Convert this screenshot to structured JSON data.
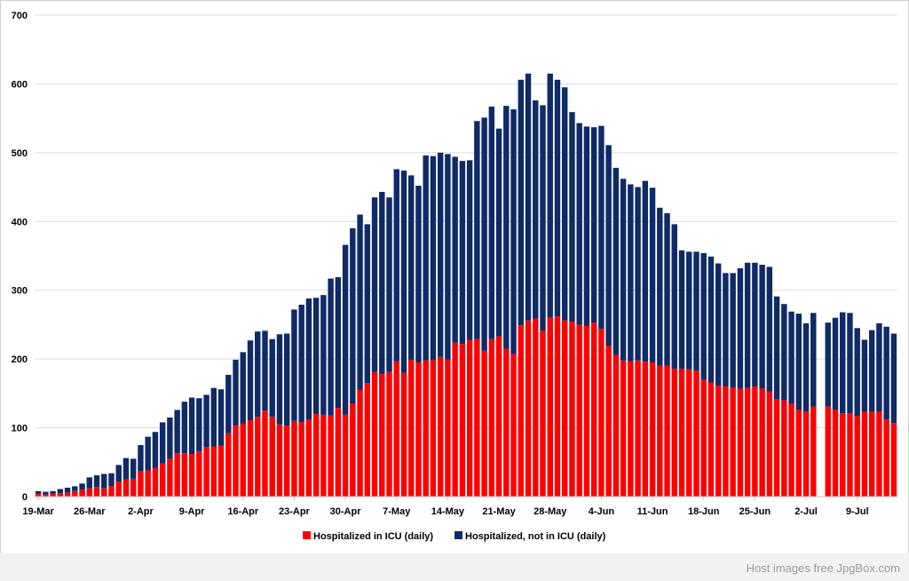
{
  "chart_data": {
    "type": "bar",
    "stacked": true,
    "title": "",
    "xlabel": "",
    "ylabel": "",
    "ylim": [
      0,
      700
    ],
    "yticks": [
      0,
      100,
      200,
      300,
      400,
      500,
      600,
      700
    ],
    "grid": true,
    "legend_position": "bottom",
    "x_start_date": "2020-03-19",
    "x_tick_labels": [
      "19-Mar",
      "26-Mar",
      "2-Apr",
      "9-Apr",
      "16-Apr",
      "23-Apr",
      "30-Apr",
      "7-May",
      "14-May",
      "21-May",
      "28-May",
      "4-Jun",
      "11-Jun",
      "18-Jun",
      "25-Jun",
      "2-Jul",
      "9-Jul"
    ],
    "series": [
      {
        "name": "Hospitalized in ICU (daily)",
        "color": "#ff0000",
        "values": [
          4,
          3,
          4,
          5,
          6,
          8,
          10,
          12,
          14,
          12,
          15,
          22,
          25,
          26,
          37,
          38,
          42,
          48,
          55,
          63,
          63,
          62,
          66,
          72,
          73,
          74,
          92,
          103,
          106,
          111,
          116,
          125,
          116,
          105,
          103,
          110,
          108,
          112,
          120,
          119,
          118,
          129,
          119,
          135,
          155,
          165,
          181,
          178,
          181,
          197,
          180,
          199,
          195,
          198,
          199,
          203,
          199,
          224,
          222,
          228,
          229,
          212,
          229,
          233,
          215,
          207,
          249,
          256,
          259,
          241,
          260,
          262,
          256,
          254,
          250,
          248,
          253,
          244,
          219,
          206,
          198,
          197,
          198,
          196,
          195,
          190,
          190,
          186,
          186,
          185,
          183,
          170,
          166,
          161,
          160,
          158,
          157,
          158,
          160,
          157,
          153,
          142,
          140,
          135,
          126,
          124,
          131,
          0,
          131,
          126,
          121,
          121,
          117,
          123,
          123,
          123,
          112,
          107
        ]
      },
      {
        "name": "Hospitalized, not in ICU (daily)",
        "color": "#0f2a66",
        "values": [
          4,
          4,
          4,
          6,
          7,
          7,
          9,
          16,
          17,
          21,
          19,
          24,
          31,
          29,
          38,
          49,
          52,
          60,
          60,
          63,
          75,
          82,
          77,
          76,
          85,
          82,
          85,
          96,
          104,
          116,
          124,
          116,
          113,
          131,
          134,
          162,
          171,
          176,
          169,
          174,
          199,
          190,
          247,
          255,
          255,
          231,
          254,
          265,
          254,
          279,
          294,
          268,
          257,
          298,
          296,
          297,
          299,
          270,
          266,
          261,
          317,
          339,
          338,
          302,
          353,
          356,
          357,
          359,
          317,
          328,
          355,
          344,
          339,
          305,
          293,
          290,
          284,
          295,
          292,
          272,
          264,
          257,
          252,
          263,
          254,
          230,
          222,
          210,
          172,
          171,
          173,
          184,
          183,
          178,
          165,
          167,
          175,
          182,
          180,
          180,
          181,
          149,
          140,
          134,
          140,
          128,
          136,
          0,
          122,
          134,
          147,
          146,
          128,
          105,
          119,
          129,
          135,
          130
        ]
      }
    ]
  },
  "footer": {
    "watermark": "Host images free JpgBox.com"
  }
}
